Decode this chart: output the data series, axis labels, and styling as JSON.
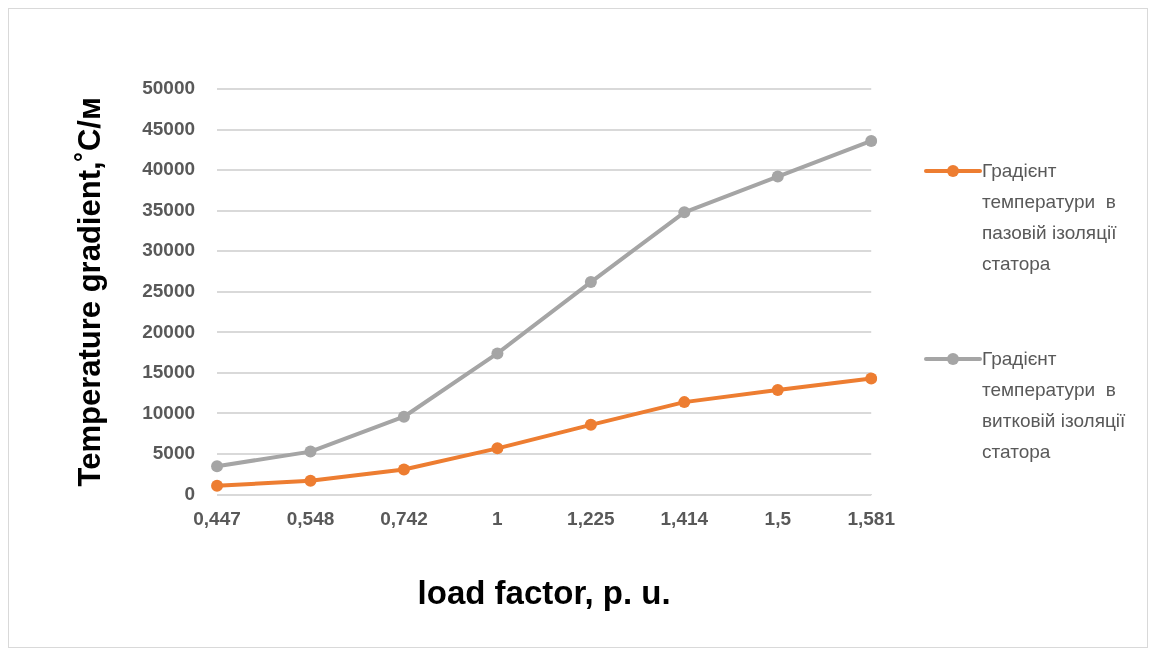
{
  "chart_data": {
    "type": "line",
    "xlabel": "load factor, p. u.",
    "ylabel": "Temperature gradient,˚C/м",
    "categories": [
      "0,447",
      "0,548",
      "0,742",
      "1",
      "1,225",
      "1,414",
      "1,5",
      "1,581"
    ],
    "series": [
      {
        "name": "Градієнт температури  в пазовій ізоляції статора",
        "color": "#ed7d31",
        "values": [
          1100,
          1700,
          3100,
          5700,
          8600,
          11400,
          12900,
          14300
        ]
      },
      {
        "name": "Градієнт температури  в витковій ізоляції статора",
        "color": "#a5a5a5",
        "values": [
          3500,
          5300,
          9600,
          17400,
          26200,
          34800,
          39200,
          43600
        ]
      }
    ],
    "ylim": [
      0,
      50000
    ],
    "yticks": [
      0,
      5000,
      10000,
      15000,
      20000,
      25000,
      30000,
      35000,
      40000,
      45000,
      50000
    ],
    "grid": "y",
    "legend": "right",
    "marker": "circle",
    "line_style": "solid"
  }
}
